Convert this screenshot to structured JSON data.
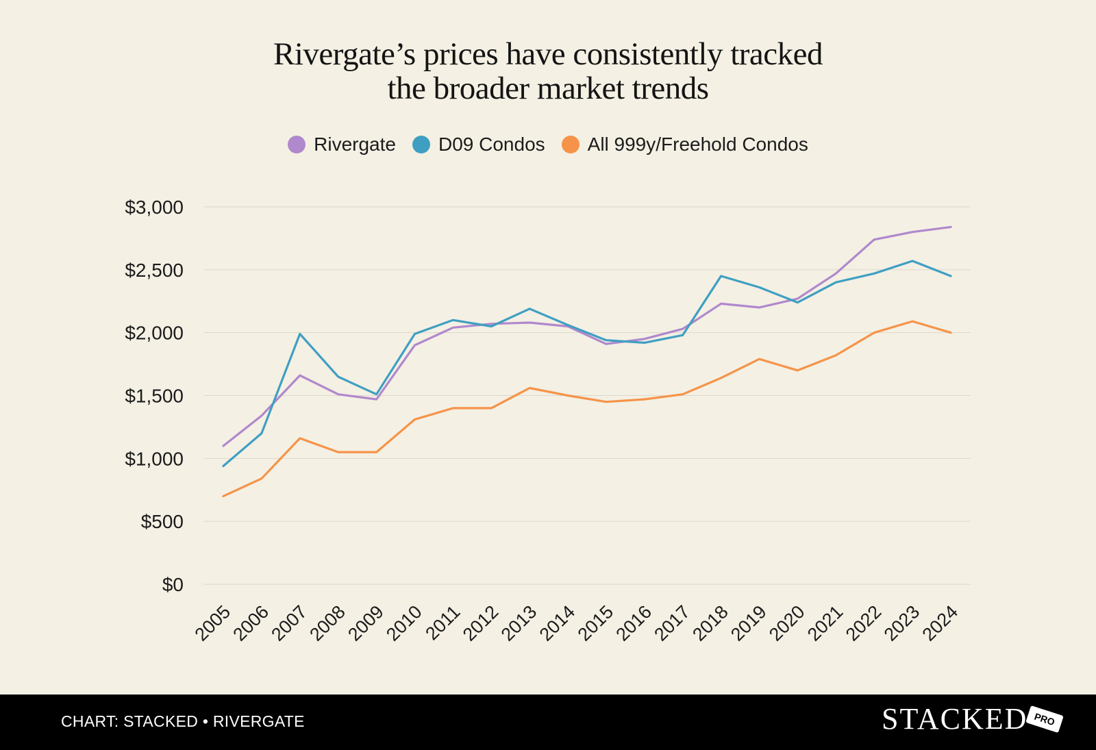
{
  "chart_data": {
    "type": "line",
    "title_line1": "Rivergate’s prices have consistently tracked",
    "title_line2": "the broader market trends",
    "categories": [
      "2005",
      "2006",
      "2007",
      "2008",
      "2009",
      "2010",
      "2011",
      "2012",
      "2013",
      "2014",
      "2015",
      "2016",
      "2017",
      "2018",
      "2019",
      "2020",
      "2021",
      "2022",
      "2023",
      "2024"
    ],
    "series": [
      {
        "name": "Rivergate",
        "color": "#b088cc",
        "values": [
          1100,
          1340,
          1660,
          1510,
          1470,
          1900,
          2040,
          2070,
          2080,
          2050,
          1910,
          1950,
          2030,
          2230,
          2200,
          2270,
          2470,
          2740,
          2800,
          2840
        ]
      },
      {
        "name": "D09 Condos",
        "color": "#3f9fc2",
        "values": [
          940,
          1200,
          1990,
          1650,
          1510,
          1990,
          2100,
          2050,
          2190,
          2060,
          1940,
          1920,
          1980,
          2450,
          2360,
          2240,
          2400,
          2470,
          2570,
          2450
        ]
      },
      {
        "name": "All 999y/Freehold Condos",
        "color": "#f69348",
        "values": [
          700,
          840,
          1160,
          1050,
          1050,
          1310,
          1400,
          1400,
          1560,
          1500,
          1450,
          1470,
          1510,
          1640,
          1790,
          1700,
          1820,
          2000,
          2090,
          2000
        ]
      }
    ],
    "ylim": [
      0,
      3000
    ],
    "yticks": [
      0,
      500,
      1000,
      1500,
      2000,
      2500,
      3000
    ],
    "ytick_labels": [
      "$0",
      "$500",
      "$1,000",
      "$1,500",
      "$2,000",
      "$2,500",
      "$3,000"
    ],
    "grid": true,
    "legend_position": "top-center",
    "xlabel": "",
    "ylabel": ""
  },
  "footer": {
    "credit": "CHART: STACKED • RIVERGATE",
    "brand": "STACKED",
    "brand_tag": "PRO"
  },
  "colors": {
    "background": "#f4f0e4",
    "footer_bg": "#000000",
    "grid": "#dcd8cc"
  }
}
